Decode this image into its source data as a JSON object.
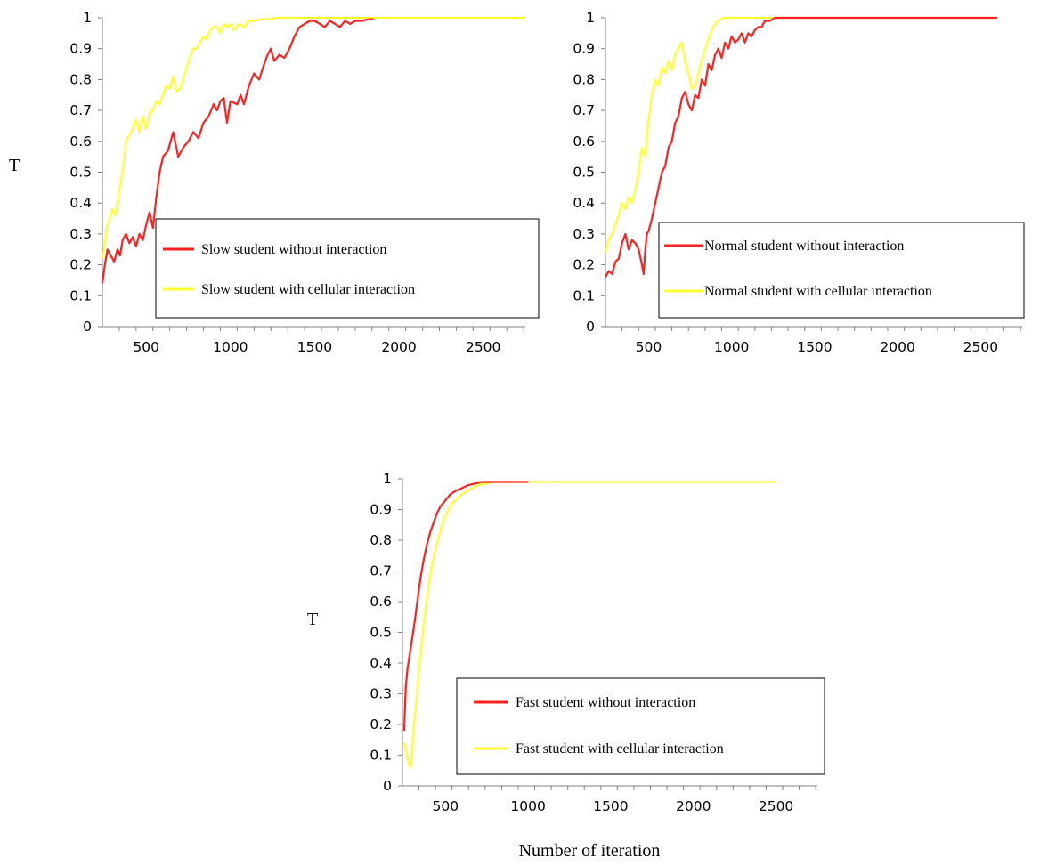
{
  "chart_data": [
    {
      "type": "line",
      "ylabel": "T",
      "xlabel": "",
      "ylim": [
        0,
        1
      ],
      "xlim": [
        240,
        2750
      ],
      "yticks": [
        "0",
        "0.1",
        "0.2",
        "0.3",
        "0.4",
        "0.5",
        "0.6",
        "0.7",
        "0.8",
        "0.9",
        "1"
      ],
      "xticks": [
        "500",
        "1000",
        "1500",
        "2000",
        "2500"
      ],
      "series": [
        {
          "name": "Slow student without interaction",
          "color": "#ff2020",
          "x": [
            240,
            255,
            270,
            290,
            310,
            330,
            345,
            360,
            380,
            400,
            420,
            440,
            460,
            480,
            500,
            520,
            540,
            560,
            580,
            600,
            630,
            660,
            690,
            720,
            750,
            780,
            810,
            840,
            870,
            900,
            920,
            940,
            960,
            980,
            1000,
            1040,
            1060,
            1080,
            1110,
            1140,
            1170,
            1200,
            1220,
            1240,
            1260,
            1290,
            1320,
            1350,
            1380,
            1410,
            1440,
            1470,
            1500,
            1530,
            1560,
            1590,
            1620,
            1650,
            1680,
            1710,
            1740,
            1780,
            1820,
            1850
          ],
          "values": [
            0.14,
            0.2,
            0.25,
            0.23,
            0.21,
            0.25,
            0.23,
            0.28,
            0.3,
            0.27,
            0.29,
            0.26,
            0.3,
            0.28,
            0.33,
            0.37,
            0.32,
            0.42,
            0.5,
            0.55,
            0.57,
            0.63,
            0.55,
            0.58,
            0.6,
            0.63,
            0.61,
            0.66,
            0.68,
            0.72,
            0.7,
            0.73,
            0.74,
            0.66,
            0.73,
            0.72,
            0.75,
            0.72,
            0.78,
            0.82,
            0.8,
            0.85,
            0.88,
            0.9,
            0.86,
            0.88,
            0.87,
            0.9,
            0.94,
            0.97,
            0.98,
            0.99,
            0.99,
            0.98,
            0.97,
            0.99,
            0.98,
            0.97,
            0.99,
            0.98,
            0.99,
            0.99,
            0.995,
            0.995
          ]
        },
        {
          "name": "Slow student with cellular interaction",
          "color": "#ffff30",
          "x": [
            240,
            255,
            270,
            285,
            300,
            320,
            340,
            360,
            380,
            400,
            420,
            440,
            460,
            480,
            500,
            520,
            540,
            560,
            580,
            600,
            620,
            640,
            660,
            680,
            700,
            720,
            740,
            760,
            780,
            800,
            820,
            840,
            860,
            880,
            900,
            920,
            940,
            960,
            980,
            1000,
            1020,
            1050,
            1080,
            1110,
            1140,
            1180,
            1220,
            1270,
            1320,
            1400,
            1500,
            1700,
            2000,
            2400,
            2750
          ],
          "values": [
            0.22,
            0.27,
            0.33,
            0.35,
            0.38,
            0.36,
            0.44,
            0.5,
            0.6,
            0.62,
            0.64,
            0.67,
            0.63,
            0.68,
            0.64,
            0.69,
            0.7,
            0.73,
            0.72,
            0.75,
            0.78,
            0.77,
            0.81,
            0.76,
            0.77,
            0.8,
            0.84,
            0.87,
            0.9,
            0.9,
            0.92,
            0.94,
            0.93,
            0.96,
            0.97,
            0.97,
            0.95,
            0.98,
            0.97,
            0.98,
            0.96,
            0.98,
            0.97,
            0.99,
            0.99,
            0.995,
            0.995,
            1,
            1,
            1,
            1,
            1,
            1,
            1,
            1
          ]
        }
      ]
    },
    {
      "type": "line",
      "ylabel": "",
      "xlabel": "",
      "ylim": [
        0,
        1
      ],
      "xlim": [
        240,
        2750
      ],
      "yticks": [
        "0",
        "0.1",
        "0.2",
        "0.3",
        "0.4",
        "0.5",
        "0.6",
        "0.7",
        "0.8",
        "0.9",
        "1"
      ],
      "xticks": [
        "500",
        "1000",
        "1500",
        "2000",
        "2500"
      ],
      "series": [
        {
          "name": "Normal student without interaction",
          "color": "#ff2020",
          "x": [
            240,
            260,
            280,
            300,
            320,
            340,
            360,
            380,
            400,
            420,
            440,
            460,
            470,
            480,
            490,
            500,
            520,
            540,
            560,
            580,
            600,
            620,
            640,
            660,
            680,
            700,
            720,
            740,
            760,
            780,
            800,
            820,
            840,
            860,
            880,
            900,
            920,
            940,
            960,
            980,
            1000,
            1020,
            1040,
            1060,
            1080,
            1100,
            1120,
            1140,
            1160,
            1180,
            1200,
            1230,
            1260,
            1290,
            1320,
            1360,
            1400,
            1500,
            1700,
            2000,
            2300,
            2600
          ],
          "values": [
            0.16,
            0.18,
            0.17,
            0.21,
            0.22,
            0.27,
            0.3,
            0.25,
            0.28,
            0.27,
            0.25,
            0.2,
            0.17,
            0.25,
            0.3,
            0.31,
            0.35,
            0.4,
            0.45,
            0.5,
            0.52,
            0.58,
            0.6,
            0.66,
            0.68,
            0.74,
            0.76,
            0.72,
            0.7,
            0.75,
            0.74,
            0.8,
            0.78,
            0.85,
            0.83,
            0.88,
            0.9,
            0.87,
            0.92,
            0.9,
            0.94,
            0.92,
            0.93,
            0.95,
            0.92,
            0.95,
            0.94,
            0.96,
            0.97,
            0.97,
            0.99,
            0.99,
            1,
            1,
            1,
            1,
            1,
            1,
            1,
            1,
            1,
            1
          ]
        },
        {
          "name": "Normal student with cellular interaction",
          "color": "#ffff30",
          "x": [
            240,
            260,
            280,
            300,
            320,
            340,
            360,
            380,
            400,
            420,
            440,
            460,
            480,
            500,
            520,
            540,
            560,
            580,
            600,
            620,
            640,
            660,
            680,
            700,
            720,
            740,
            760,
            780,
            800,
            820,
            840,
            860,
            880,
            900,
            920,
            950,
            980,
            1010,
            1050,
            1100,
            1200,
            1300,
            1400,
            1600,
            1800,
            2000,
            2200,
            2400,
            2600
          ],
          "values": [
            0.24,
            0.28,
            0.3,
            0.33,
            0.36,
            0.4,
            0.38,
            0.42,
            0.4,
            0.44,
            0.5,
            0.58,
            0.55,
            0.67,
            0.75,
            0.8,
            0.78,
            0.84,
            0.82,
            0.86,
            0.83,
            0.88,
            0.9,
            0.92,
            0.86,
            0.82,
            0.77,
            0.78,
            0.82,
            0.86,
            0.9,
            0.93,
            0.96,
            0.98,
            0.99,
            1,
            1,
            1,
            1,
            1,
            1,
            1,
            1,
            1,
            1,
            1,
            1,
            1,
            1
          ]
        }
      ]
    },
    {
      "type": "line",
      "ylabel": "T",
      "xlabel": "Number of iteration",
      "ylim": [
        0,
        1
      ],
      "xlim": [
        240,
        2750
      ],
      "yticks": [
        "0",
        "0.1",
        "0.2",
        "0.3",
        "0.4",
        "0.5",
        "0.6",
        "0.7",
        "0.8",
        "0.9",
        "1"
      ],
      "xticks": [
        "500",
        "1000",
        "1500",
        "2000",
        "2500"
      ],
      "series": [
        {
          "name": "Fast student without interaction",
          "color": "#ff2020",
          "x": [
            250,
            260,
            270,
            290,
            310,
            330,
            350,
            370,
            390,
            410,
            430,
            450,
            470,
            500,
            530,
            560,
            600,
            640,
            680,
            720,
            760,
            800,
            900,
            1000
          ],
          "values": [
            0.18,
            0.32,
            0.38,
            0.45,
            0.52,
            0.6,
            0.68,
            0.74,
            0.79,
            0.83,
            0.86,
            0.89,
            0.91,
            0.93,
            0.95,
            0.96,
            0.97,
            0.98,
            0.985,
            0.99,
            0.99,
            0.99,
            0.99,
            0.99
          ]
        },
        {
          "name": "Fast student with cellular interaction",
          "color": "#ffff30",
          "x": [
            250,
            260,
            275,
            290,
            300,
            310,
            325,
            340,
            360,
            380,
            400,
            420,
            440,
            460,
            480,
            500,
            520,
            540,
            560,
            580,
            600,
            630,
            660,
            700,
            750,
            800,
            900,
            1100,
            1500,
            2000,
            2500
          ],
          "values": [
            0.14,
            0.12,
            0.08,
            0.06,
            0.12,
            0.2,
            0.28,
            0.38,
            0.48,
            0.58,
            0.66,
            0.72,
            0.77,
            0.81,
            0.85,
            0.88,
            0.9,
            0.92,
            0.93,
            0.94,
            0.95,
            0.96,
            0.97,
            0.98,
            0.985,
            0.99,
            0.99,
            0.99,
            0.99,
            0.99,
            0.99
          ]
        }
      ]
    }
  ]
}
